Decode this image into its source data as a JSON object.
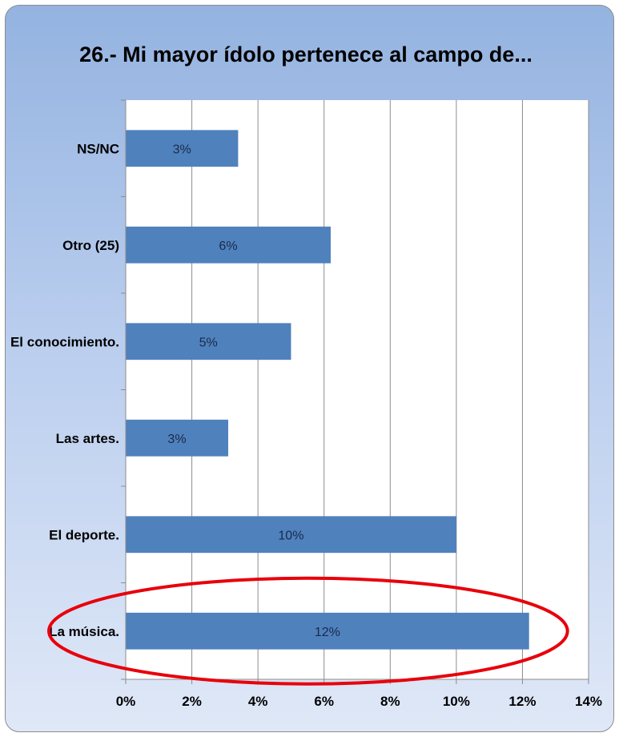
{
  "chart_data": {
    "type": "bar",
    "orientation": "horizontal",
    "title": "26.- Mi mayor ídolo pertenece al campo de...",
    "categories": [
      "NS/NC",
      "Otro (25)",
      "El conocimiento.",
      "Las artes.",
      "El deporte.",
      "La música."
    ],
    "values": [
      3.4,
      6.2,
      5.0,
      3.1,
      10.0,
      12.2
    ],
    "data_labels": [
      "3%",
      "6%",
      "5%",
      "3%",
      "10%",
      "12%"
    ],
    "xlim": [
      0,
      14
    ],
    "x_ticks": [
      "0%",
      "2%",
      "4%",
      "6%",
      "8%",
      "10%",
      "12%",
      "14%"
    ],
    "xlabel": "",
    "ylabel": "",
    "grid": "vertical",
    "legend": "none",
    "highlighted_category": "La música.",
    "colors": {
      "bar": "#4f81bd",
      "highlight": "#e8000b",
      "plot_bg": "#ffffff",
      "frame_top": "#94b3e0",
      "frame_bottom": "#dfe8f7"
    }
  }
}
